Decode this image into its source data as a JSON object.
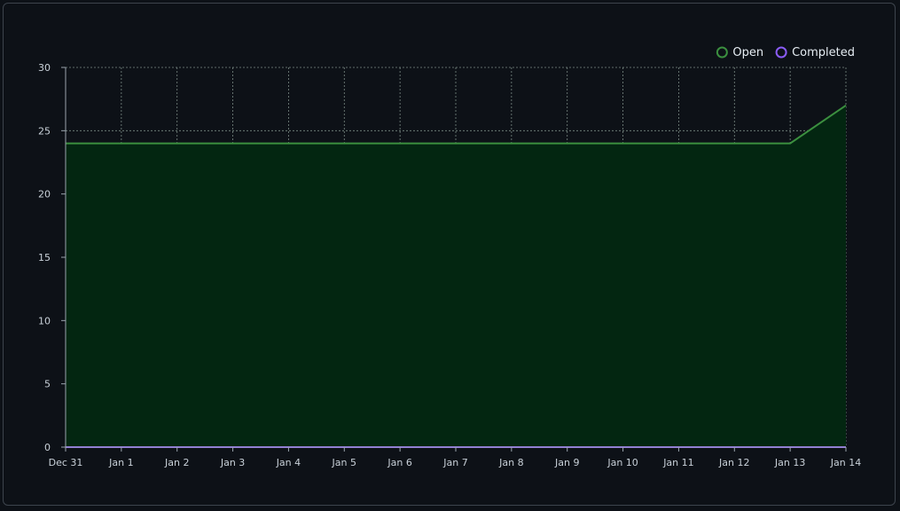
{
  "chart_data": {
    "type": "area",
    "categories": [
      "Dec 31",
      "Jan 1",
      "Jan 2",
      "Jan 3",
      "Jan 4",
      "Jan 5",
      "Jan 6",
      "Jan 7",
      "Jan 8",
      "Jan 9",
      "Jan 10",
      "Jan 11",
      "Jan 12",
      "Jan 13",
      "Jan 14"
    ],
    "series": [
      {
        "name": "Open",
        "color": "#3b8f3f",
        "fill": "#032611",
        "values": [
          24,
          24,
          24,
          24,
          24,
          24,
          24,
          24,
          24,
          24,
          24,
          24,
          24,
          24,
          27
        ]
      },
      {
        "name": "Completed",
        "color": "#8b5cf6",
        "values": [
          0,
          0,
          0,
          0,
          0,
          0,
          0,
          0,
          0,
          0,
          0,
          0,
          0,
          0,
          0
        ]
      }
    ],
    "ylim": [
      0,
      30
    ],
    "yticks": [
      "0",
      "5",
      "10",
      "15",
      "20",
      "25",
      "30"
    ],
    "grid": true,
    "legend": "top-right",
    "title": "",
    "xlabel": "",
    "ylabel": ""
  }
}
